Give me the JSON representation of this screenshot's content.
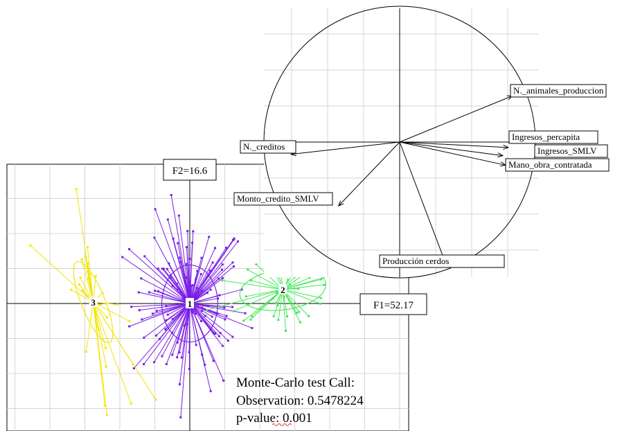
{
  "chart_data": [
    {
      "type": "scatter",
      "title": "",
      "grid": true,
      "axes": {
        "f1_label": "F1=52.17",
        "f2_label": "F2=16.6"
      },
      "xlim": [
        -2.6,
        3.1
      ],
      "ylim": [
        -1.6,
        2.0
      ],
      "clusters": [
        {
          "label": "1",
          "color": "#7a1ee6",
          "center": [
            0,
            0
          ],
          "ellipse": {
            "rx": 0.4,
            "ry": 0.55,
            "angle": 0
          },
          "n_points": 130,
          "spread": [
            0.42,
            0.62
          ]
        },
        {
          "label": "2",
          "color": "#44e855",
          "center": [
            1.33,
            0.2
          ],
          "ellipse": {
            "rx": 0.62,
            "ry": 0.29,
            "angle": -8
          },
          "n_points": 40,
          "spread": [
            0.5,
            0.35
          ]
        },
        {
          "label": "3",
          "color": "#f2e600",
          "center": [
            -1.38,
            0.02
          ],
          "ellipse": {
            "rx": 0.17,
            "ry": 0.62,
            "angle": -22
          },
          "n_points": 28,
          "spread": [
            0.2,
            0.7
          ]
        }
      ],
      "annotation": {
        "line1": "Monte-Carlo test Call:",
        "line2": "Observation: 0.5478224",
        "line3_label": "p-value",
        "line3_value": ": 0.001"
      }
    },
    {
      "type": "correlation_circle",
      "title": "",
      "grid": true,
      "xlim": [
        -1,
        1
      ],
      "ylim": [
        -1,
        1
      ],
      "variables": [
        {
          "name": "N._animales_produccion",
          "label": "N._animales_produccion",
          "x": 0.83,
          "y": 0.34
        },
        {
          "name": "Ingresos_percapita",
          "label": "Ingresos_percapita",
          "x": 0.8,
          "y": -0.04
        },
        {
          "name": "Ingresos_SMLV",
          "label": "Ingresos_SMLV",
          "x": 0.76,
          "y": -0.1
        },
        {
          "name": "Mano_obra_contratada",
          "label": "Mano_obra_contratada",
          "x": 0.78,
          "y": -0.17
        },
        {
          "name": "N._creditos",
          "label": "N._creditos",
          "x": -0.8,
          "y": -0.09
        },
        {
          "name": "Monto_credito_SMLV",
          "label": "Monto_credito_SMLV",
          "x": -0.45,
          "y": -0.47
        },
        {
          "name": "Producción cerdos",
          "label": "Producción cerdos",
          "x": 0.33,
          "y": -0.87
        }
      ]
    }
  ]
}
